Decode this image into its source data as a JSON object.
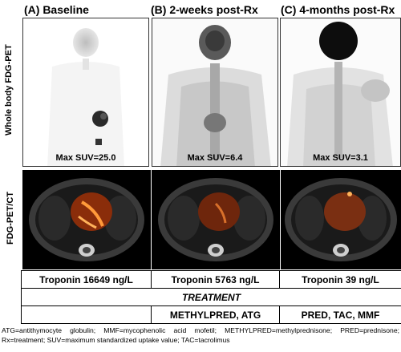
{
  "panels": [
    {
      "title": "(A) Baseline",
      "suv": "Max SUV=25.0",
      "troponin": "Troponin 16649 ng/L"
    },
    {
      "title": "(B) 2-weeks post-Rx",
      "suv": "Max SUV=6.4",
      "troponin": "Troponin 5763 ng/L"
    },
    {
      "title": "(C) 4-months post-Rx",
      "suv": "Max SUV=3.1",
      "troponin": "Troponin 39 ng/L"
    }
  ],
  "row_labels": {
    "pet": "Whole body FDG-PET",
    "ct": "FDG-PET/CT"
  },
  "treatment": {
    "heading": "TREATMENT",
    "regimens": [
      "",
      "METHYLPRED, ATG",
      "PRED, TAC, MMF"
    ]
  },
  "footnote": "ATG=antithymocyte globulin; MMF=mycophenolic acid mofetil; METHYLPRED=methylprednisone; PRED=prednisone; Rx=treatment; SUV=maximum standardized uptake value; TAC=tacrolimus",
  "colors": {
    "uptake_hot": "#ff6a1a",
    "ct_bone": "#cfcfcf",
    "pet_dark": "#111111"
  }
}
